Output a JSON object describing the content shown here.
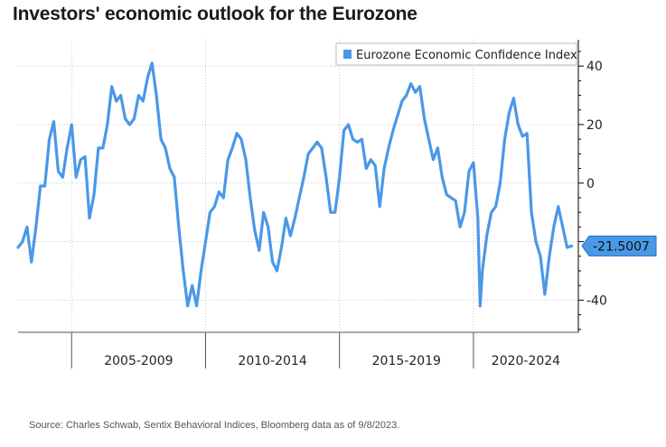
{
  "title": "Investors' economic outlook for the Eurozone",
  "source": "Source: Charles Schwab, Sentix Behavioral Indices, Bloomberg data as of 9/8/2023.",
  "chart_data": {
    "type": "line",
    "title": "Investors' economic outlook for the Eurozone",
    "xlabel": "",
    "ylabel": "",
    "ylim": [
      -51,
      49
    ],
    "yticks": [
      40,
      20,
      0,
      -20,
      -40
    ],
    "ytick_labels": [
      "40",
      "20",
      "0",
      "",
      "-40"
    ],
    "x_period_labels": [
      "2005-2009",
      "2010-2014",
      "2015-2019",
      "2020-2024"
    ],
    "x_range": [
      "2003-01",
      "2023-12"
    ],
    "grid": true,
    "legend_position": "top-right",
    "last_value_label": "-21.5007",
    "series": [
      {
        "name": "Eurozone Economic Confidence Index",
        "color": "#4a98e8",
        "points": [
          [
            "2003-01",
            -22
          ],
          [
            "2003-03",
            -20
          ],
          [
            "2003-05",
            -15
          ],
          [
            "2003-07",
            -27
          ],
          [
            "2003-09",
            -15
          ],
          [
            "2003-11",
            -1
          ],
          [
            "2004-01",
            -1
          ],
          [
            "2004-03",
            15
          ],
          [
            "2004-05",
            21
          ],
          [
            "2004-07",
            4
          ],
          [
            "2004-09",
            2
          ],
          [
            "2004-11",
            12
          ],
          [
            "2005-01",
            20
          ],
          [
            "2005-03",
            2
          ],
          [
            "2005-05",
            8
          ],
          [
            "2005-07",
            9
          ],
          [
            "2005-09",
            -12
          ],
          [
            "2005-11",
            -4
          ],
          [
            "2006-01",
            12
          ],
          [
            "2006-03",
            12
          ],
          [
            "2006-05",
            20
          ],
          [
            "2006-07",
            33
          ],
          [
            "2006-09",
            28
          ],
          [
            "2006-11",
            30
          ],
          [
            "2007-01",
            22
          ],
          [
            "2007-03",
            20
          ],
          [
            "2007-05",
            22
          ],
          [
            "2007-07",
            30
          ],
          [
            "2007-09",
            28
          ],
          [
            "2007-11",
            36
          ],
          [
            "2008-01",
            41
          ],
          [
            "2008-03",
            30
          ],
          [
            "2008-05",
            15
          ],
          [
            "2008-07",
            12
          ],
          [
            "2008-09",
            5
          ],
          [
            "2008-11",
            2
          ],
          [
            "2009-01",
            -15
          ],
          [
            "2009-03",
            -30
          ],
          [
            "2009-05",
            -42
          ],
          [
            "2009-07",
            -35
          ],
          [
            "2009-09",
            -42
          ],
          [
            "2009-11",
            -30
          ],
          [
            "2010-01",
            -20
          ],
          [
            "2010-03",
            -10
          ],
          [
            "2010-05",
            -8
          ],
          [
            "2010-07",
            -3
          ],
          [
            "2010-09",
            -5
          ],
          [
            "2010-11",
            8
          ],
          [
            "2011-01",
            12
          ],
          [
            "2011-03",
            17
          ],
          [
            "2011-05",
            15
          ],
          [
            "2011-07",
            8
          ],
          [
            "2011-09",
            -5
          ],
          [
            "2011-11",
            -16
          ],
          [
            "2012-01",
            -23
          ],
          [
            "2012-03",
            -10
          ],
          [
            "2012-05",
            -15
          ],
          [
            "2012-07",
            -27
          ],
          [
            "2012-09",
            -30
          ],
          [
            "2012-11",
            -22
          ],
          [
            "2013-01",
            -12
          ],
          [
            "2013-03",
            -18
          ],
          [
            "2013-05",
            -12
          ],
          [
            "2013-07",
            -5
          ],
          [
            "2013-09",
            2
          ],
          [
            "2013-11",
            10
          ],
          [
            "2014-01",
            12
          ],
          [
            "2014-03",
            14
          ],
          [
            "2014-05",
            12
          ],
          [
            "2014-07",
            2
          ],
          [
            "2014-09",
            -10
          ],
          [
            "2014-11",
            -10
          ],
          [
            "2015-01",
            2
          ],
          [
            "2015-03",
            18
          ],
          [
            "2015-05",
            20
          ],
          [
            "2015-07",
            15
          ],
          [
            "2015-09",
            14
          ],
          [
            "2015-11",
            15
          ],
          [
            "2016-01",
            5
          ],
          [
            "2016-03",
            8
          ],
          [
            "2016-05",
            6
          ],
          [
            "2016-07",
            -8
          ],
          [
            "2016-09",
            5
          ],
          [
            "2016-11",
            12
          ],
          [
            "2017-01",
            18
          ],
          [
            "2017-03",
            23
          ],
          [
            "2017-05",
            28
          ],
          [
            "2017-07",
            30
          ],
          [
            "2017-09",
            34
          ],
          [
            "2017-11",
            31
          ],
          [
            "2018-01",
            33
          ],
          [
            "2018-03",
            22
          ],
          [
            "2018-05",
            15
          ],
          [
            "2018-07",
            8
          ],
          [
            "2018-09",
            12
          ],
          [
            "2018-11",
            2
          ],
          [
            "2019-01",
            -4
          ],
          [
            "2019-03",
            -5
          ],
          [
            "2019-05",
            -6
          ],
          [
            "2019-07",
            -15
          ],
          [
            "2019-09",
            -10
          ],
          [
            "2019-11",
            4
          ],
          [
            "2020-01",
            7
          ],
          [
            "2020-03",
            -12
          ],
          [
            "2020-04",
            -42
          ],
          [
            "2020-05",
            -30
          ],
          [
            "2020-07",
            -18
          ],
          [
            "2020-09",
            -10
          ],
          [
            "2020-11",
            -8
          ],
          [
            "2021-01",
            0
          ],
          [
            "2021-03",
            15
          ],
          [
            "2021-05",
            24
          ],
          [
            "2021-07",
            29
          ],
          [
            "2021-09",
            20
          ],
          [
            "2021-11",
            16
          ],
          [
            "2022-01",
            17
          ],
          [
            "2022-03",
            -10
          ],
          [
            "2022-05",
            -20
          ],
          [
            "2022-07",
            -25
          ],
          [
            "2022-09",
            -38
          ],
          [
            "2022-11",
            -25
          ],
          [
            "2023-01",
            -15
          ],
          [
            "2023-03",
            -8
          ],
          [
            "2023-05",
            -15
          ],
          [
            "2023-07",
            -22
          ],
          [
            "2023-09",
            -21.5
          ]
        ]
      }
    ]
  }
}
